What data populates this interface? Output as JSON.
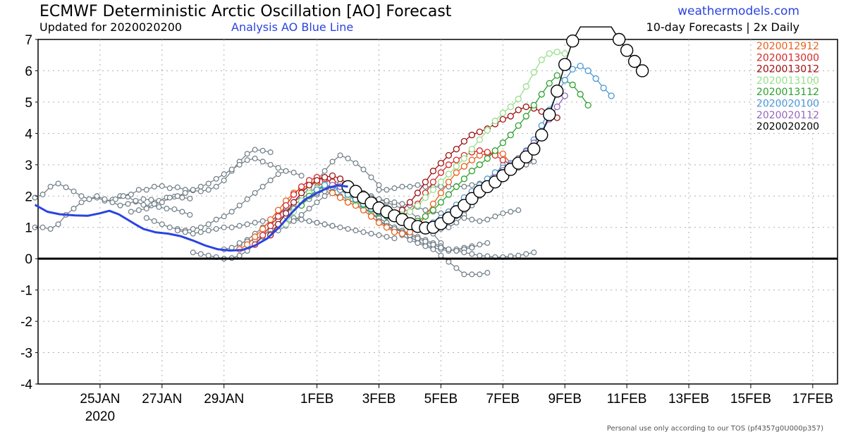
{
  "header": {
    "title": "ECMWF Deterministic Arctic Oscillation [AO] Forecast",
    "updated": "Updated for 2020020200",
    "analysis_note": "Analysis AO Blue Line",
    "site": "weathermodels.com",
    "frequency": "10-day Forecasts | 2x Daily"
  },
  "footer": {
    "tos": "Personal use only according to our TOS (pf4357g0U000p357)"
  },
  "chart_data": {
    "type": "line",
    "x_unit": "days from 23 Jan 2020",
    "xlim": [
      0,
      25.8
    ],
    "ylim": [
      -4,
      7
    ],
    "yticks": [
      -4,
      -3,
      -2,
      -1,
      0,
      1,
      2,
      3,
      4,
      5,
      6,
      7
    ],
    "xticks": [
      {
        "x": 2,
        "label": "25JAN"
      },
      {
        "x": 4,
        "label": "27JAN"
      },
      {
        "x": 6,
        "label": "29JAN"
      },
      {
        "x": 9,
        "label": "1FEB"
      },
      {
        "x": 11,
        "label": "3FEB"
      },
      {
        "x": 13,
        "label": "5FEB"
      },
      {
        "x": 15,
        "label": "7FEB"
      },
      {
        "x": 17,
        "label": "9FEB"
      },
      {
        "x": 19,
        "label": "11FEB"
      },
      {
        "x": 21,
        "label": "13FEB"
      },
      {
        "x": 23,
        "label": "15FEB"
      },
      {
        "x": 25,
        "label": "17FEB"
      }
    ],
    "year_label": "2020",
    "grid": true,
    "zero_line": true,
    "legend_position": "top-right",
    "analysis": {
      "color": "#2a44e0",
      "points": [
        [
          -0.1,
          1.72
        ],
        [
          0.3,
          1.5
        ],
        [
          0.7,
          1.42
        ],
        [
          1.2,
          1.38
        ],
        [
          1.6,
          1.37
        ],
        [
          2.0,
          1.45
        ],
        [
          2.3,
          1.53
        ],
        [
          2.6,
          1.42
        ],
        [
          2.8,
          1.3
        ],
        [
          3.1,
          1.12
        ],
        [
          3.4,
          0.95
        ],
        [
          3.8,
          0.84
        ],
        [
          4.2,
          0.8
        ],
        [
          4.6,
          0.72
        ],
        [
          5.0,
          0.58
        ],
        [
          5.4,
          0.42
        ],
        [
          5.8,
          0.3
        ],
        [
          6.2,
          0.26
        ],
        [
          6.6,
          0.28
        ],
        [
          7.0,
          0.42
        ],
        [
          7.4,
          0.65
        ],
        [
          7.8,
          1.02
        ],
        [
          8.2,
          1.48
        ],
        [
          8.6,
          1.88
        ],
        [
          9.0,
          2.1
        ],
        [
          9.4,
          2.28
        ],
        [
          9.7,
          2.34
        ],
        [
          10.0,
          2.3
        ]
      ]
    },
    "legend": [
      {
        "label": "2020012912",
        "color": "#e8601c"
      },
      {
        "label": "2020013000",
        "color": "#d62728"
      },
      {
        "label": "2020013012",
        "color": "#a01010"
      },
      {
        "label": "2020013100",
        "color": "#98df8a"
      },
      {
        "label": "2020013112",
        "color": "#2ca02c"
      },
      {
        "label": "2020020100",
        "color": "#4a98d6"
      },
      {
        "label": "2020020112",
        "color": "#9467bd"
      },
      {
        "label": "2020020200",
        "color": "#000000"
      }
    ],
    "older_runs": {
      "color": "#6e7c86",
      "series": [
        {
          "start": -0.1,
          "values": [
            1.95,
            2.05,
            2.3,
            2.4,
            2.28,
            2.15,
            2.0,
            1.9,
            1.95,
            1.85,
            1.88,
            2.0,
            1.98,
            1.82,
            1.72,
            1.7,
            1.65,
            1.6,
            1.58,
            1.5,
            1.4
          ]
        },
        {
          "start": -0.1,
          "values": [
            1.0,
            1.0,
            0.95,
            1.1,
            1.4,
            1.6,
            1.8,
            1.9,
            2.0,
            1.9,
            1.8,
            1.7,
            1.75,
            1.85,
            1.9,
            1.88,
            1.85,
            1.95,
            1.98,
            1.95,
            1.92
          ]
        },
        {
          "start": 2.5,
          "values": [
            1.9,
            2.0,
            2.05,
            2.2,
            2.2,
            2.3,
            2.32,
            2.25,
            2.28,
            2.2,
            2.18,
            2.15,
            2.2,
            2.3,
            2.5,
            2.8,
            3.1,
            3.35,
            3.48,
            3.45,
            3.4
          ]
        },
        {
          "start": 3.0,
          "values": [
            1.5,
            1.55,
            1.6,
            1.75,
            1.8,
            1.95,
            2.0,
            2.1,
            2.2,
            2.3,
            2.4,
            2.55,
            2.7,
            2.85,
            3.0,
            3.15,
            3.2,
            3.1,
            3.0,
            2.9,
            2.8
          ]
        },
        {
          "start": 3.5,
          "values": [
            1.3,
            1.2,
            1.1,
            1.0,
            0.95,
            0.9,
            0.95,
            1.0,
            1.1,
            1.25,
            1.35,
            1.5,
            1.7,
            1.9,
            2.1,
            2.3,
            2.5,
            2.7,
            2.8,
            2.75,
            2.65
          ]
        },
        {
          "start": 4.5,
          "values": [
            0.9,
            0.85,
            0.8,
            0.85,
            0.9,
            0.95,
            1.0,
            1.0,
            1.05,
            1.1,
            1.15,
            1.2,
            1.25,
            1.3,
            1.35,
            1.3,
            1.25,
            1.2,
            1.15,
            1.1,
            1.05
          ]
        },
        {
          "start": 5.0,
          "values": [
            0.2,
            0.15,
            0.1,
            0.05,
            0.0,
            0.02,
            0.1,
            0.25,
            0.45,
            0.7,
            0.95,
            1.2,
            1.45,
            1.7,
            1.9,
            2.1,
            2.3,
            2.45,
            2.5,
            2.4,
            2.3
          ]
        },
        {
          "start": 6.0,
          "values": [
            0.3,
            0.35,
            0.45,
            0.6,
            0.8,
            1.0,
            1.2,
            1.4,
            1.6,
            1.8,
            2.0,
            2.25,
            2.5,
            2.8,
            3.1,
            3.3,
            3.2,
            3.05,
            2.85,
            2.6,
            2.35
          ]
        },
        {
          "start": 6.5,
          "values": [
            0.5,
            0.55,
            0.6,
            0.75,
            0.9,
            1.05,
            1.15,
            1.2,
            1.25,
            1.2,
            1.15,
            1.1,
            1.05,
            1.0,
            0.95,
            0.9,
            0.85,
            0.8,
            0.75,
            0.7,
            0.65
          ]
        },
        {
          "start": 7.5,
          "values": [
            0.8,
            0.9,
            1.05,
            1.2,
            1.4,
            1.6,
            1.8,
            2.0,
            2.15,
            2.25,
            2.3,
            2.2,
            2.1,
            2.0,
            1.9,
            1.8,
            1.7,
            1.6,
            1.5,
            1.3,
            1.0
          ]
        },
        {
          "start": 8.0,
          "values": [
            1.5,
            1.6,
            1.75,
            1.9,
            2.05,
            2.2,
            2.35,
            2.4,
            2.3,
            2.2,
            2.05,
            1.9,
            1.75,
            1.6,
            1.45,
            1.3,
            1.15,
            1.0,
            0.9,
            0.8,
            0.5
          ]
        },
        {
          "start": 9.0,
          "values": [
            2.1,
            2.15,
            2.1,
            2.0,
            1.9,
            1.75,
            1.6,
            1.45,
            1.3,
            1.15,
            1.0,
            0.85,
            0.7,
            0.55,
            0.45,
            0.35,
            0.3,
            0.25,
            0.3,
            0.35,
            0.4
          ]
        },
        {
          "start": 9.5,
          "values": [
            2.3,
            2.2,
            2.05,
            1.85,
            1.65,
            1.45,
            1.25,
            1.05,
            0.9,
            0.75,
            0.6,
            0.5,
            0.4,
            0.3,
            0.1,
            -0.1,
            -0.3,
            -0.5,
            -0.5,
            -0.5,
            -0.45
          ]
        },
        {
          "start": 9.5,
          "values": [
            2.1,
            2.0,
            1.9,
            1.75,
            1.6,
            1.45,
            1.3,
            1.15,
            1.0,
            0.9,
            0.8,
            0.7,
            0.6,
            0.5,
            0.4,
            0.3,
            0.25,
            0.3,
            0.35,
            0.45,
            0.5
          ]
        },
        {
          "start": 10.0,
          "values": [
            2.0,
            1.9,
            1.8,
            1.7,
            1.6,
            1.5,
            1.4,
            1.3,
            1.2,
            1.1,
            1.0,
            0.95,
            0.95,
            1.0,
            1.15,
            1.4,
            1.7,
            2.0,
            2.35,
            2.7,
            3.0
          ]
        },
        {
          "start": 10.5,
          "values": [
            2.0,
            1.95,
            1.9,
            1.85,
            1.8,
            1.75,
            1.7,
            1.65,
            1.55,
            1.5,
            1.45,
            1.4,
            1.35,
            1.3,
            1.25,
            1.2,
            1.25,
            1.35,
            1.45,
            1.5,
            1.55
          ]
        },
        {
          "start": 11.0,
          "values": [
            2.2,
            2.2,
            2.25,
            2.3,
            2.3,
            2.35,
            2.3,
            2.28,
            2.3,
            2.3,
            2.32,
            2.3,
            2.35,
            2.4,
            2.5,
            2.6,
            2.7,
            2.8,
            2.9,
            3.0,
            3.1
          ]
        },
        {
          "start": 11.0,
          "values": [
            1.2,
            1.05,
            0.95,
            0.85,
            0.75,
            0.65,
            0.55,
            0.45,
            0.35,
            0.3,
            0.25,
            0.2,
            0.15,
            0.1,
            0.08,
            0.05,
            0.05,
            0.08,
            0.1,
            0.15,
            0.2
          ]
        }
      ]
    },
    "forecast_runs": [
      {
        "name": "2020012912",
        "start": 6.5,
        "values": [
          0.3,
          0.45,
          0.7,
          0.95,
          1.25,
          1.55,
          1.85,
          2.1,
          2.25,
          2.35,
          2.45,
          2.3,
          2.1,
          1.95,
          1.8,
          1.7,
          1.55,
          1.35,
          1.15,
          1.0,
          0.85,
          0.8,
          0.85,
          1.05,
          1.35,
          1.75,
          2.1,
          2.45,
          2.75,
          2.95,
          3.15,
          3.3,
          3.35,
          3.4,
          3.35,
          3.05,
          3.0
        ]
      },
      {
        "name": "2020013000",
        "start": 7.0,
        "values": [
          0.45,
          0.75,
          1.05,
          1.35,
          1.7,
          2.05,
          2.3,
          2.5,
          2.6,
          2.55,
          2.45,
          2.3,
          2.1,
          1.9,
          1.72,
          1.58,
          1.45,
          1.35,
          1.3,
          1.35,
          1.5,
          1.75,
          2.1,
          2.45,
          2.75,
          3.0,
          3.15,
          3.3,
          3.4,
          3.45,
          3.4,
          3.3,
          3.15,
          3.0
        ]
      },
      {
        "name": "2020013012",
        "start": 7.5,
        "values": [
          0.75,
          1.1,
          1.45,
          1.8,
          2.1,
          2.35,
          2.5,
          2.6,
          2.65,
          2.55,
          2.4,
          2.2,
          2.0,
          1.8,
          1.62,
          1.5,
          1.45,
          1.55,
          1.8,
          2.1,
          2.45,
          2.8,
          3.05,
          3.3,
          3.5,
          3.75,
          3.95,
          4.05,
          4.15,
          4.3,
          4.45,
          4.55,
          4.75,
          4.85,
          4.8,
          4.7,
          4.6,
          4.5
        ]
      },
      {
        "name": "2020013100",
        "start": 8.0,
        "values": [
          1.1,
          1.5,
          1.85,
          2.1,
          2.25,
          2.35,
          2.32,
          2.2,
          2.0,
          1.85,
          1.7,
          1.55,
          1.45,
          1.38,
          1.35,
          1.4,
          1.5,
          1.7,
          1.95,
          2.2,
          2.45,
          2.7,
          2.95,
          3.2,
          3.5,
          3.8,
          4.1,
          4.4,
          4.65,
          4.85,
          5.1,
          5.5,
          5.95,
          6.35,
          6.55,
          6.6,
          6.55
        ]
      },
      {
        "name": "2020013112",
        "start": 8.5,
        "values": [
          1.7,
          2.0,
          2.2,
          2.3,
          2.3,
          2.2,
          2.05,
          1.88,
          1.72,
          1.58,
          1.45,
          1.35,
          1.28,
          1.2,
          1.15,
          1.2,
          1.35,
          1.55,
          1.8,
          2.05,
          2.3,
          2.55,
          2.8,
          3.0,
          3.2,
          3.45,
          3.7,
          3.95,
          4.25,
          4.55,
          4.9,
          5.25,
          5.6,
          5.85,
          5.7,
          5.55,
          5.25,
          4.9
        ]
      },
      {
        "name": "2020020100",
        "start": 9.0,
        "values": [
          2.2,
          2.35,
          2.3,
          2.2,
          2.05,
          1.9,
          1.75,
          1.6,
          1.48,
          1.38,
          1.3,
          1.2,
          1.12,
          1.05,
          1.05,
          1.15,
          1.3,
          1.5,
          1.72,
          1.95,
          2.15,
          2.35,
          2.55,
          2.75,
          2.9,
          3.05,
          3.2,
          3.45,
          3.8,
          4.25,
          4.75,
          5.25,
          5.7,
          6.05,
          6.15,
          6.0,
          5.75,
          5.45,
          5.2
        ]
      },
      {
        "name": "2020020112",
        "start": 9.5,
        "values": [
          2.35,
          2.3,
          2.2,
          2.05,
          1.9,
          1.75,
          1.6,
          1.45,
          1.32,
          1.2,
          1.1,
          1.02,
          0.95,
          0.98,
          1.1,
          1.28,
          1.5,
          1.72,
          1.95,
          2.18,
          2.4,
          2.6,
          2.82,
          3.0,
          3.2,
          3.42,
          3.7,
          4.05,
          4.45,
          4.85,
          5.2
        ]
      },
      {
        "name": "2020020200",
        "start": 10.0,
        "values": [
          2.3,
          2.15,
          1.95,
          1.78,
          1.62,
          1.5,
          1.37,
          1.25,
          1.12,
          1.03,
          0.98,
          1.0,
          1.12,
          1.3,
          1.5,
          1.7,
          1.92,
          2.15,
          2.3,
          2.45,
          2.65,
          2.85,
          3.05,
          3.25,
          3.5,
          3.95,
          4.6,
          5.35,
          6.2,
          6.95,
          7.5,
          7.8,
          7.9,
          7.75,
          7.4,
          7.0,
          6.65,
          6.3,
          6.0
        ]
      }
    ]
  }
}
